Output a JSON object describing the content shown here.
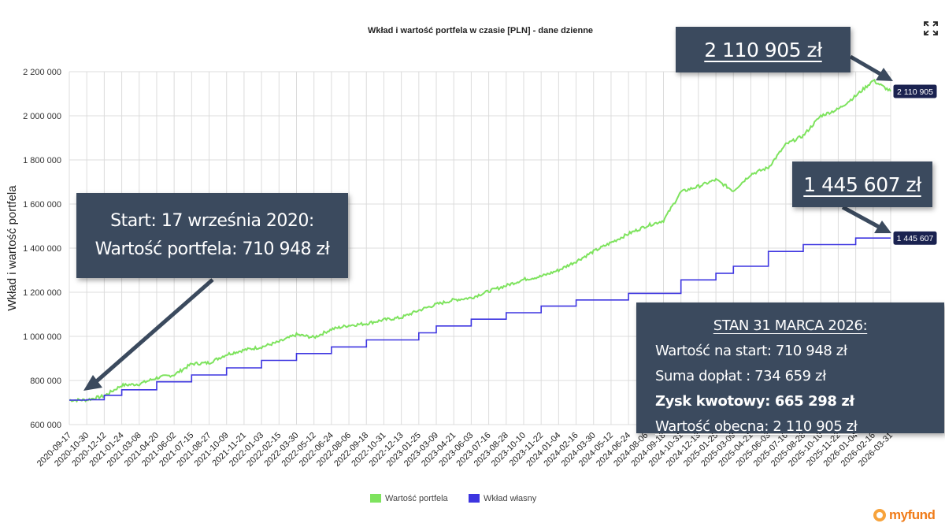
{
  "chart_data": {
    "type": "line",
    "title": "Wkład i wartość portfela w czasie [PLN] - dane dzienne",
    "xlabel": "",
    "ylabel": "Wkład i wartość portfela",
    "ylim": [
      600000,
      2200000
    ],
    "yticks": [
      600000,
      800000,
      1000000,
      1200000,
      1400000,
      1600000,
      1800000,
      2000000,
      2200000
    ],
    "ytick_labels": [
      "600 000",
      "800 000",
      "1 000 000",
      "1 200 000",
      "1 400 000",
      "1 600 000",
      "1 800 000",
      "2 000 000",
      "2 200 000"
    ],
    "grid": true,
    "legend_position": "bottom",
    "categories": [
      "2020-09-17",
      "2020-10-30",
      "2020-12-12",
      "2021-01-24",
      "2021-03-08",
      "2021-04-20",
      "2021-06-02",
      "2021-07-15",
      "2021-08-27",
      "2021-10-09",
      "2021-11-21",
      "2022-01-03",
      "2022-02-15",
      "2022-03-30",
      "2022-05-12",
      "2022-06-24",
      "2022-08-06",
      "2022-09-18",
      "2022-10-31",
      "2022-12-13",
      "2023-01-25",
      "2023-03-09",
      "2023-04-21",
      "2023-06-03",
      "2023-07-16",
      "2023-08-28",
      "2023-10-10",
      "2023-11-22",
      "2024-01-04",
      "2024-02-16",
      "2024-03-30",
      "2024-05-12",
      "2024-06-24",
      "2024-08-06",
      "2024-09-18",
      "2024-10-31",
      "2024-12-13",
      "2025-01-25",
      "2025-03-09",
      "2025-04-21",
      "2025-06-03",
      "2025-07-16",
      "2025-08-28",
      "2025-10-10",
      "2025-11-22",
      "2026-01-04",
      "2026-02-16",
      "2026-03-31"
    ],
    "series": [
      {
        "name": "Wartość portfela",
        "color": "#7ee35e",
        "values": [
          710948,
          712000,
          730000,
          778000,
          784000,
          812000,
          826000,
          875000,
          880000,
          918000,
          938000,
          952000,
          975000,
          1008000,
          995000,
          1032000,
          1050000,
          1058000,
          1075000,
          1085000,
          1118000,
          1145000,
          1165000,
          1175000,
          1205000,
          1230000,
          1258000,
          1272000,
          1300000,
          1340000,
          1385000,
          1425000,
          1465000,
          1500000,
          1525000,
          1655000,
          1680000,
          1710000,
          1660000,
          1735000,
          1765000,
          1870000,
          1910000,
          2000000,
          2030000,
          2090000,
          2160000,
          2110905
        ]
      },
      {
        "name": "Wkład własny",
        "color": "#3d35e0",
        "values": [
          710948,
          713000,
          733000,
          758000,
          758000,
          794000,
          794000,
          825000,
          825000,
          857000,
          857000,
          891000,
          891000,
          922000,
          922000,
          952000,
          952000,
          984000,
          984000,
          984000,
          1016000,
          1047000,
          1047000,
          1078000,
          1078000,
          1107000,
          1107000,
          1137000,
          1137000,
          1165000,
          1165000,
          1165000,
          1195000,
          1195000,
          1195000,
          1256000,
          1256000,
          1286000,
          1318000,
          1318000,
          1385000,
          1385000,
          1416000,
          1416000,
          1416000,
          1445607,
          1445607,
          1445607
        ]
      }
    ],
    "end_labels": [
      "2 110 905",
      "1 445 607"
    ]
  },
  "legend": {
    "portfolio": "Wartość portfela",
    "contribution": "Wkład własny"
  },
  "annotations": {
    "total_value_box": "2 110 905 zł",
    "contribution_box": "1 445 607 zł",
    "start_line1": "Start: 17 września 2020:",
    "start_line2": "Wartość portfela: 710 948 zł",
    "summary_title": "STAN 31 MARCA 2026:",
    "summary_line1": "Wartość na start: 710 948 zł",
    "summary_line2": "Suma dopłat : 734 659 zł",
    "summary_line3": "Zysk kwotowy: 665 298 zł",
    "summary_line4": "Wartość obecna: 2 110 905 zł"
  },
  "logo": {
    "text": "myfund"
  },
  "colors": {
    "box_bg": "#3b4a5e",
    "portfolio": "#7ee35e",
    "contribution": "#3d35e0",
    "label_bg": "#1a2250"
  }
}
